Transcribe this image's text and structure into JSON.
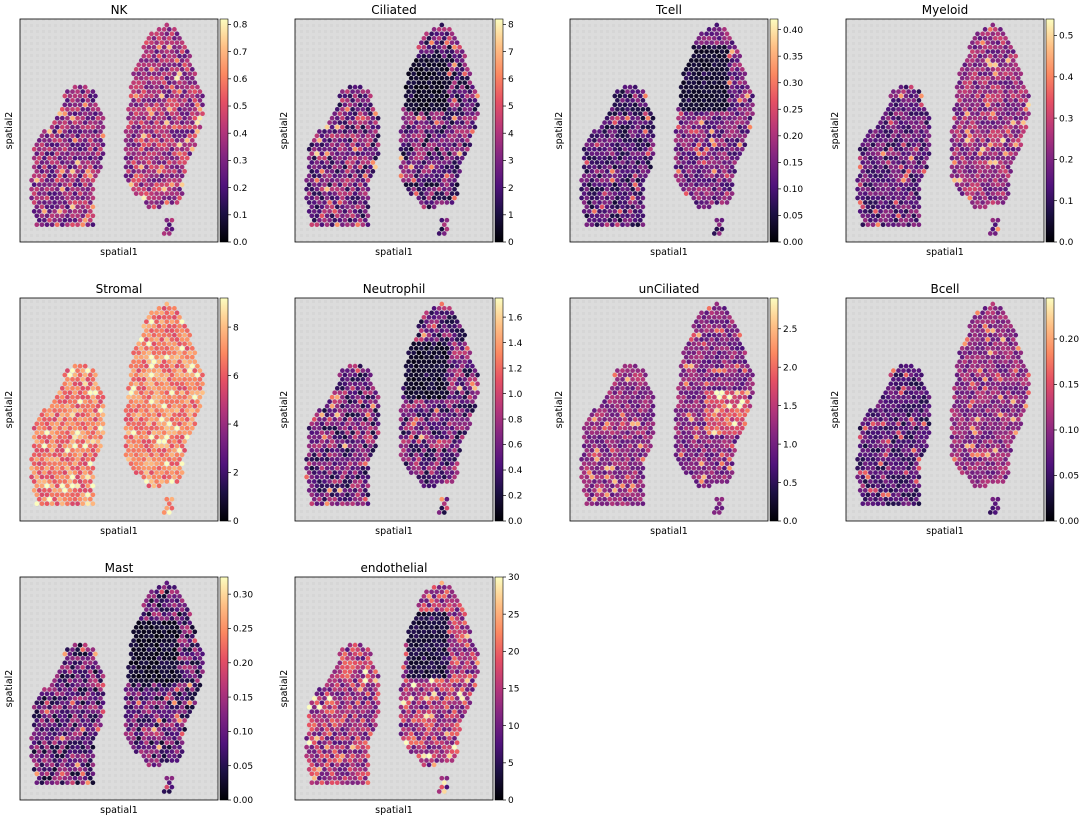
{
  "chart_data": [
    {
      "type": "heatmap",
      "title": "NK",
      "xlabel": "spatial1",
      "ylabel": "spatial2",
      "colormap": "magma",
      "clim": [
        0,
        0.82
      ],
      "colorbar_ticks": [
        "0.0",
        "0.1",
        "0.2",
        "0.3",
        "0.4",
        "0.5",
        "0.6",
        "0.7",
        "0.8"
      ],
      "colorbar_values": [
        0,
        0.1,
        0.2,
        0.3,
        0.4,
        0.5,
        0.6,
        0.7,
        0.8
      ]
    },
    {
      "type": "heatmap",
      "title": "Ciliated",
      "xlabel": "spatial1",
      "ylabel": "spatial2",
      "colormap": "magma",
      "clim": [
        0,
        8.2
      ],
      "colorbar_ticks": [
        "0",
        "1",
        "2",
        "3",
        "4",
        "5",
        "6",
        "7",
        "8"
      ],
      "colorbar_values": [
        0,
        1,
        2,
        3,
        4,
        5,
        6,
        7,
        8
      ]
    },
    {
      "type": "heatmap",
      "title": "Tcell",
      "xlabel": "spatial1",
      "ylabel": "spatial2",
      "colormap": "magma",
      "clim": [
        0,
        0.42
      ],
      "colorbar_ticks": [
        "0.00",
        "0.05",
        "0.10",
        "0.15",
        "0.20",
        "0.25",
        "0.30",
        "0.35",
        "0.40"
      ],
      "colorbar_values": [
        0,
        0.05,
        0.1,
        0.15,
        0.2,
        0.25,
        0.3,
        0.35,
        0.4
      ]
    },
    {
      "type": "heatmap",
      "title": "Myeloid",
      "xlabel": "spatial1",
      "ylabel": "spatial2",
      "colormap": "magma",
      "clim": [
        0,
        0.54
      ],
      "colorbar_ticks": [
        "0.0",
        "0.1",
        "0.2",
        "0.3",
        "0.4",
        "0.5"
      ],
      "colorbar_values": [
        0,
        0.1,
        0.2,
        0.3,
        0.4,
        0.5
      ]
    },
    {
      "type": "heatmap",
      "title": "Stromal",
      "xlabel": "spatial1",
      "ylabel": "spatial2",
      "colormap": "magma",
      "clim": [
        0,
        9.2
      ],
      "colorbar_ticks": [
        "0",
        "2",
        "4",
        "6",
        "8"
      ],
      "colorbar_values": [
        0,
        2,
        4,
        6,
        8
      ]
    },
    {
      "type": "heatmap",
      "title": "Neutrophil",
      "xlabel": "spatial1",
      "ylabel": "spatial2",
      "colormap": "magma",
      "clim": [
        0,
        1.75
      ],
      "colorbar_ticks": [
        "0.0",
        "0.2",
        "0.4",
        "0.6",
        "0.8",
        "1.0",
        "1.2",
        "1.4",
        "1.6"
      ],
      "colorbar_values": [
        0,
        0.2,
        0.4,
        0.6,
        0.8,
        1.0,
        1.2,
        1.4,
        1.6
      ]
    },
    {
      "type": "heatmap",
      "title": "unCiliated",
      "xlabel": "spatial1",
      "ylabel": "spatial2",
      "colormap": "magma",
      "clim": [
        0,
        2.9
      ],
      "colorbar_ticks": [
        "0.0",
        "0.5",
        "1.0",
        "1.5",
        "2.0",
        "2.5"
      ],
      "colorbar_values": [
        0,
        0.5,
        1.0,
        1.5,
        2.0,
        2.5
      ]
    },
    {
      "type": "heatmap",
      "title": "Bcell",
      "xlabel": "spatial1",
      "ylabel": "spatial2",
      "colormap": "magma",
      "clim": [
        0,
        0.245
      ],
      "colorbar_ticks": [
        "0.00",
        "0.05",
        "0.10",
        "0.15",
        "0.20"
      ],
      "colorbar_values": [
        0,
        0.05,
        0.1,
        0.15,
        0.2
      ]
    },
    {
      "type": "heatmap",
      "title": "Mast",
      "xlabel": "spatial1",
      "ylabel": "spatial2",
      "colormap": "magma",
      "clim": [
        0,
        0.325
      ],
      "colorbar_ticks": [
        "0.00",
        "0.05",
        "0.10",
        "0.15",
        "0.20",
        "0.25",
        "0.30"
      ],
      "colorbar_values": [
        0,
        0.05,
        0.1,
        0.15,
        0.2,
        0.25,
        0.3
      ]
    },
    {
      "type": "heatmap",
      "title": "endothelial",
      "xlabel": "spatial1",
      "ylabel": "spatial2",
      "colormap": "magma",
      "clim": [
        0,
        30
      ],
      "colorbar_ticks": [
        "0",
        "5",
        "10",
        "15",
        "20",
        "25",
        "30"
      ],
      "colorbar_values": [
        0,
        5,
        10,
        15,
        20,
        25,
        30
      ]
    }
  ]
}
